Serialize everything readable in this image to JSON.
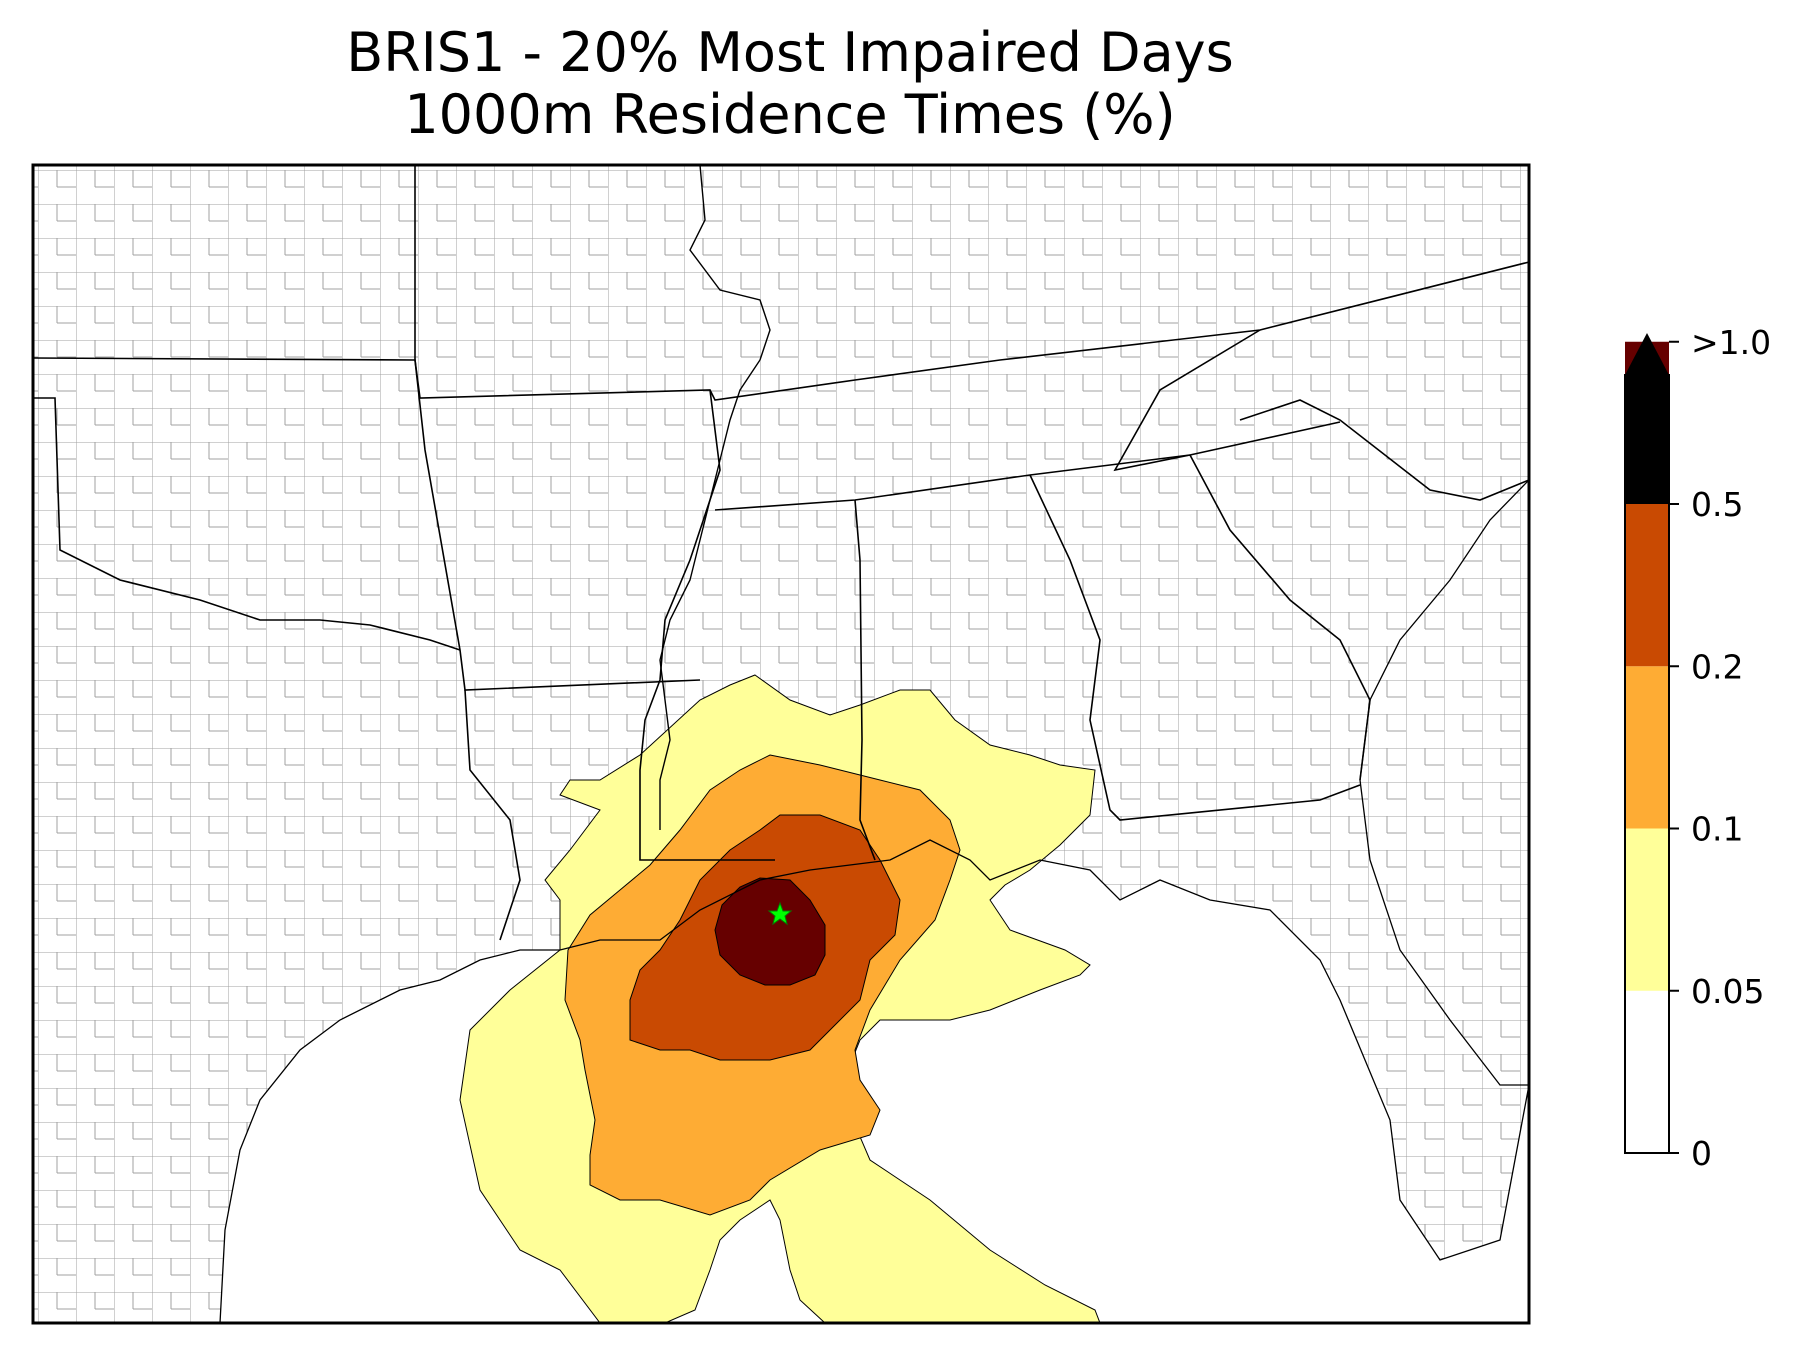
{
  "title": {
    "line1": "BRIS1 - 20% Most Impaired Days",
    "line2": "1000m Residence Times (%)"
  },
  "colorbar": {
    "levels": [
      {
        "label": "0",
        "color": "#ffffff"
      },
      {
        "label": "0.05",
        "color": "#ffff99"
      },
      {
        "label": "0.1",
        "color": "#feac34"
      },
      {
        "label": "0.2",
        "color": "#c94a02"
      },
      {
        "label": "0.5",
        "color": "#660000"
      },
      {
        "label": ">1.0",
        "color": "#000000"
      }
    ],
    "extend": "max"
  },
  "site_marker": {
    "name": "BRIS1",
    "symbol": "star",
    "color": "#00ff00"
  },
  "colors": {
    "county_lines": "#a0a0a0",
    "state_lines": "#000000",
    "frame": "#000000"
  }
}
